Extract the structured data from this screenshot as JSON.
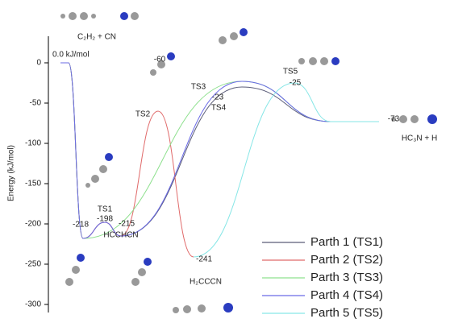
{
  "chart_data": {
    "type": "line",
    "y_label": "Energy (kJ/mol)",
    "ylim": [
      -307,
      33
    ],
    "yticks": [
      0,
      -50,
      -100,
      -150,
      -200,
      -250,
      -300
    ],
    "xlim": [
      0,
      480
    ],
    "series": [
      {
        "name": "Parth 1 (TS1)",
        "color": "#5a5c78",
        "x": [
          15,
          25,
          43,
          70,
          90,
          240,
          350,
          410
        ],
        "values": [
          0,
          0,
          -218,
          -198,
          -215,
          -30,
          -73,
          -73
        ]
      },
      {
        "name": "Parth 2 (TS2)",
        "color": "#e06a6a",
        "x": [
          15,
          25,
          43,
          70,
          90,
          136,
          180
        ],
        "values": [
          0,
          0,
          -218,
          -198,
          -215,
          -60,
          -241
        ]
      },
      {
        "name": "Parth 3 (TS3)",
        "color": "#8ee08e",
        "x": [
          15,
          25,
          43,
          240,
          350,
          410
        ],
        "values": [
          0,
          0,
          -218,
          -23,
          -73,
          -73
        ]
      },
      {
        "name": "Parth 4 (TS4)",
        "color": "#6a6ae6",
        "x": [
          15,
          25,
          43,
          70,
          90,
          240,
          350,
          410
        ],
        "values": [
          0,
          0,
          -218,
          -198,
          -215,
          -23,
          -73,
          -73
        ]
      },
      {
        "name": "Parth 5 (TS5)",
        "color": "#86e6e6",
        "x": [
          180,
          305,
          350,
          410
        ],
        "values": [
          -241,
          -25,
          -73,
          -73
        ]
      }
    ],
    "annotations": [
      "0.0 kJ/mol",
      "TS1",
      "HCCHCN",
      "TS2",
      "H₂CCCN",
      "TS3",
      "TS4",
      "TS5",
      "HC₃N + H",
      "C₂H₂ + CN"
    ]
  }
}
